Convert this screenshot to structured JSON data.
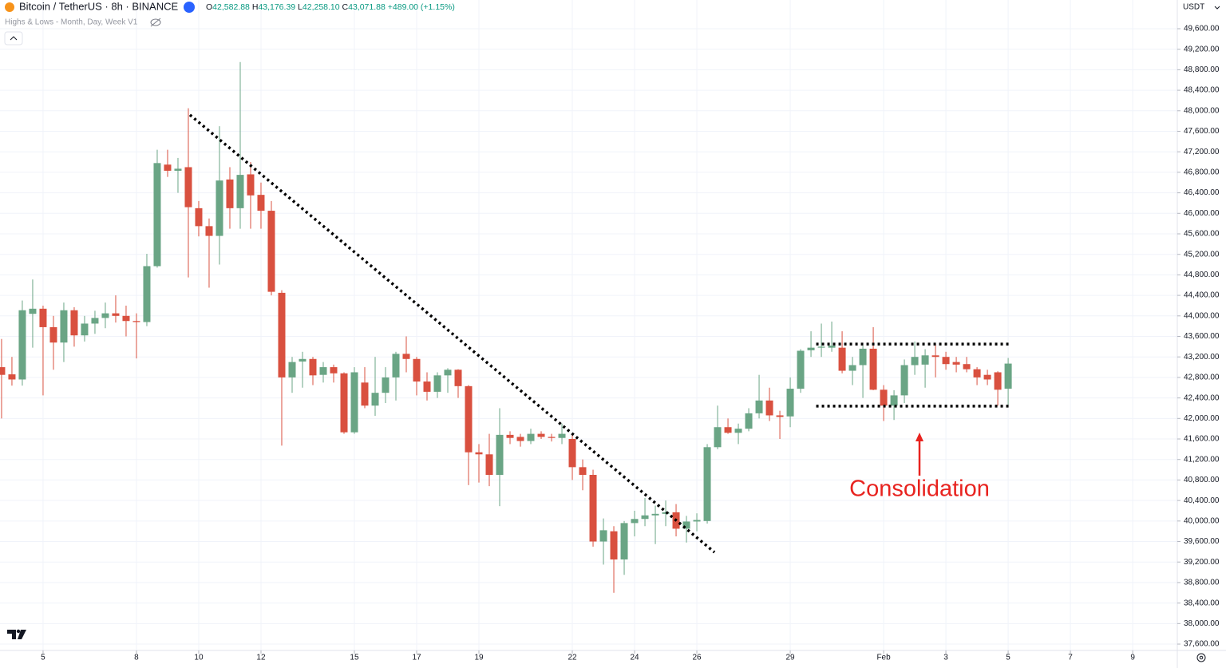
{
  "header": {
    "symbol": "Bitcoin / TetherUS · 8h · BINANCE",
    "ohlc": [
      {
        "label": "O",
        "value": "42,582.88"
      },
      {
        "label": "H",
        "value": "43,176.39"
      },
      {
        "label": "L",
        "value": "42,258.10"
      },
      {
        "label": "C",
        "value": "43,071.88"
      }
    ],
    "change": "+489.00 (+1.15%)",
    "indicator": "Highs & Lows - Month, Day, Week V1",
    "currency": "USDT"
  },
  "chart_data": {
    "type": "candlestick",
    "up_color": "#6aa585",
    "down_color": "#d9503f",
    "grid": true,
    "open": [
      43000,
      42860,
      42760,
      44040,
      44140,
      43780,
      43480,
      44110,
      43620,
      43850,
      43960,
      44050,
      44000,
      43900,
      43880,
      44970,
      46950,
      46830,
      46900,
      46100,
      45750,
      45560,
      46660,
      46100,
      46760,
      46360,
      46050,
      44450,
      42800,
      43110,
      43160,
      42850,
      43000,
      42880,
      41730,
      42700,
      42250,
      42500,
      42800,
      43260,
      43160,
      42720,
      42520,
      42840,
      42950,
      42630,
      41340,
      41300,
      40900,
      41680,
      41640,
      41560,
      41700,
      41640,
      41620,
      41600,
      41050,
      40900,
      39600,
      39800,
      39250,
      39960,
      40040,
      40110,
      40140,
      40170,
      39850,
      39990,
      40000,
      41440,
      41830,
      41720,
      41800,
      42100,
      42350,
      42060,
      42040,
      42580,
      43330,
      43380,
      43380,
      43380,
      42930,
      43040,
      43360,
      42560,
      42250,
      42450,
      43040,
      43050,
      43230,
      43200,
      43100,
      43060,
      42960,
      42850,
      42900,
      42580
    ],
    "high": [
      43550,
      43200,
      44300,
      44710,
      44200,
      44000,
      44260,
      44170,
      44000,
      44100,
      44260,
      44400,
      44200,
      44050,
      45210,
      47240,
      47240,
      47080,
      48050,
      46240,
      45900,
      47700,
      46900,
      48950,
      47000,
      46600,
      46240,
      44500,
      43200,
      43300,
      43200,
      43100,
      43050,
      42900,
      43000,
      43000,
      43200,
      43000,
      43300,
      43600,
      43200,
      42900,
      42900,
      42980,
      42960,
      42650,
      41500,
      41700,
      42200,
      41750,
      41700,
      41800,
      41750,
      41700,
      41900,
      41700,
      41200,
      41000,
      40050,
      39900,
      40000,
      40200,
      40450,
      40300,
      40400,
      40330,
      40100,
      40150,
      41500,
      42250,
      42000,
      41900,
      42200,
      42850,
      42600,
      42150,
      42800,
      43350,
      43700,
      43850,
      43890,
      43700,
      43200,
      43420,
      43780,
      42650,
      42550,
      43150,
      43500,
      43350,
      43450,
      43300,
      43200,
      43200,
      43000,
      42950,
      42920,
      43180
    ],
    "low": [
      42000,
      42640,
      42640,
      43380,
      42450,
      42950,
      43100,
      43400,
      43500,
      43650,
      43760,
      43870,
      43600,
      43170,
      43800,
      44940,
      46710,
      46400,
      44750,
      45550,
      44550,
      45000,
      45700,
      45700,
      45700,
      45700,
      44400,
      41470,
      42500,
      42600,
      42650,
      42700,
      42700,
      41700,
      41700,
      42200,
      42050,
      42300,
      42350,
      42900,
      42450,
      42350,
      42400,
      42500,
      42400,
      40700,
      40750,
      40680,
      40290,
      41500,
      41450,
      41500,
      41600,
      41550,
      41500,
      40800,
      40600,
      39500,
      39150,
      38600,
      38950,
      39700,
      39900,
      39550,
      39900,
      39700,
      39580,
      39800,
      39950,
      41400,
      41700,
      41500,
      41750,
      42000,
      41950,
      41600,
      41830,
      42500,
      43200,
      43200,
      43300,
      42880,
      42650,
      42400,
      42550,
      41950,
      41970,
      42300,
      42850,
      42600,
      42800,
      42950,
      42900,
      42900,
      42650,
      42650,
      42250,
      42260
    ],
    "close": [
      42850,
      42760,
      44110,
      44140,
      43780,
      43480,
      44110,
      43620,
      43850,
      43960,
      44050,
      44000,
      43900,
      43880,
      44970,
      46980,
      46830,
      46870,
      46120,
      45750,
      45560,
      46640,
      46100,
      46750,
      46350,
      46050,
      44470,
      42800,
      43100,
      43160,
      42840,
      43000,
      42880,
      41730,
      42900,
      42250,
      42500,
      42800,
      43260,
      43160,
      42720,
      42520,
      42840,
      42950,
      42630,
      41340,
      41300,
      40900,
      41680,
      41620,
      41560,
      41700,
      41640,
      41620,
      41700,
      41050,
      40900,
      39600,
      39820,
      39250,
      39960,
      40040,
      40110,
      40140,
      40170,
      39850,
      39990,
      40020,
      41440,
      41830,
      41720,
      41800,
      42100,
      42350,
      42060,
      42030,
      42580,
      43320,
      43380,
      43400,
      43420,
      42930,
      43040,
      43360,
      42560,
      42250,
      42450,
      43040,
      43200,
      43230,
      43200,
      43060,
      43050,
      42960,
      42800,
      42760,
      42560,
      43070
    ],
    "xlim": [
      -0.15,
      113.3
    ],
    "ylim": [
      37476,
      50160
    ],
    "xticks": [
      {
        "value": 4,
        "label": "5"
      },
      {
        "value": 13,
        "label": "8"
      },
      {
        "value": 19,
        "label": "10"
      },
      {
        "value": 25,
        "label": "12"
      },
      {
        "value": 34,
        "label": "15"
      },
      {
        "value": 40,
        "label": "17"
      },
      {
        "value": 46,
        "label": "19"
      },
      {
        "value": 55,
        "label": "22"
      },
      {
        "value": 61,
        "label": "24"
      },
      {
        "value": 67,
        "label": "26"
      },
      {
        "value": 76,
        "label": "29"
      },
      {
        "value": 85,
        "label": "Feb"
      },
      {
        "value": 91,
        "label": "3"
      },
      {
        "value": 97,
        "label": "5"
      },
      {
        "value": 103,
        "label": "7"
      },
      {
        "value": 109,
        "label": "9"
      }
    ],
    "yticks": [
      {
        "value": 37600,
        "label": "37,600.00"
      },
      {
        "value": 38000,
        "label": "38,000.00"
      },
      {
        "value": 38400,
        "label": "38,400.00"
      },
      {
        "value": 38800,
        "label": "38,800.00"
      },
      {
        "value": 39200,
        "label": "39,200.00"
      },
      {
        "value": 39600,
        "label": "39,600.00"
      },
      {
        "value": 40000,
        "label": "40,000.00"
      },
      {
        "value": 40400,
        "label": "40,400.00"
      },
      {
        "value": 40800,
        "label": "40,800.00"
      },
      {
        "value": 41200,
        "label": "41,200.00"
      },
      {
        "value": 41600,
        "label": "41,600.00"
      },
      {
        "value": 42000,
        "label": "42,000.00"
      },
      {
        "value": 42400,
        "label": "42,400.00"
      },
      {
        "value": 42800,
        "label": "42,800.00"
      },
      {
        "value": 43200,
        "label": "43,200.00"
      },
      {
        "value": 43600,
        "label": "43,600.00"
      },
      {
        "value": 44000,
        "label": "44,000.00"
      },
      {
        "value": 44400,
        "label": "44,400.00"
      },
      {
        "value": 44800,
        "label": "44,800.00"
      },
      {
        "value": 45200,
        "label": "45,200.00"
      },
      {
        "value": 45600,
        "label": "45,600.00"
      },
      {
        "value": 46000,
        "label": "46,000.00"
      },
      {
        "value": 46400,
        "label": "46,400.00"
      },
      {
        "value": 46800,
        "label": "46,800.00"
      },
      {
        "value": 47200,
        "label": "47,200.00"
      },
      {
        "value": 47600,
        "label": "47,600.00"
      },
      {
        "value": 48000,
        "label": "48,000.00"
      },
      {
        "value": 48400,
        "label": "48,400.00"
      },
      {
        "value": 48800,
        "label": "48,800.00"
      },
      {
        "value": 49200,
        "label": "49,200.00"
      },
      {
        "value": 49600,
        "label": "49,600.00"
      }
    ],
    "trend_line": {
      "x": [
        18.15,
        68.7
      ],
      "y": [
        47920,
        39390
      ]
    },
    "range_lines": [
      {
        "x": [
          78.5,
          97.2
        ],
        "y": 43450
      },
      {
        "x": [
          78.5,
          97.2
        ],
        "y": 42240
      }
    ],
    "annotation": "Consolidation",
    "annotation_color": "#e8231f"
  }
}
